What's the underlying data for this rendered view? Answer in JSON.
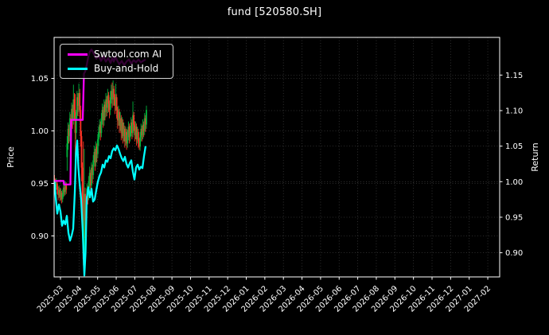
{
  "figure": {
    "title": "fund [520580.SH]",
    "background_color": "#000000",
    "text_color": "#ffffff"
  },
  "chart_data": {
    "type": "candlestick+line",
    "title": "fund [520580.SH]",
    "grid": true,
    "legend": {
      "position": "upper-left",
      "entries": [
        "Swtool.com AI",
        "Buy-and-Hold"
      ]
    },
    "x_axis": {
      "tick_labels": [
        "2025-03",
        "2025-04",
        "2025-05",
        "2025-06",
        "2025-07",
        "2025-08",
        "2025-09",
        "2025-10",
        "2025-11",
        "2025-12",
        "2026-01",
        "2026-02",
        "2026-03",
        "2026-04",
        "2026-05",
        "2026-06",
        "2026-07",
        "2026-08",
        "2026-09",
        "2026-10",
        "2026-11",
        "2026-12",
        "2027-01",
        "2027-02"
      ],
      "xlim_months": [
        -0.343,
        23.64
      ]
    },
    "left_axis": {
      "label": "Price",
      "ticks": [
        0.9,
        0.95,
        1.0,
        1.05
      ],
      "ylim": [
        0.861,
        1.089
      ]
    },
    "right_axis": {
      "label": "Return",
      "ticks": [
        0.9,
        0.95,
        1.0,
        1.05,
        1.1,
        1.15
      ],
      "ylim": [
        0.866,
        1.203
      ]
    },
    "candles": {
      "up_color": "#00b43c",
      "down_color": "#ff3326",
      "start_month": -0.321,
      "step_month": 0.0485,
      "ohlc": [
        [
          0.955,
          0.958,
          0.945,
          0.952
        ],
        [
          0.952,
          0.954,
          0.942,
          0.947
        ],
        [
          0.947,
          0.955,
          0.944,
          0.95
        ],
        [
          0.95,
          0.952,
          0.94,
          0.944
        ],
        [
          0.944,
          0.947,
          0.934,
          0.939
        ],
        [
          0.939,
          0.948,
          0.936,
          0.944
        ],
        [
          0.944,
          0.946,
          0.933,
          0.937
        ],
        [
          0.937,
          0.945,
          0.934,
          0.941
        ],
        [
          0.941,
          0.943,
          0.931,
          0.935
        ],
        [
          0.935,
          0.944,
          0.932,
          0.94
        ],
        [
          0.94,
          0.95,
          0.937,
          0.946
        ],
        [
          0.946,
          0.949,
          0.938,
          0.942
        ],
        [
          0.942,
          0.952,
          0.939,
          0.948
        ],
        [
          0.948,
          0.951,
          0.94,
          0.944
        ],
        [
          0.975,
          0.995,
          0.962,
          0.988
        ],
        [
          0.988,
          1.008,
          0.982,
          1.002
        ],
        [
          1.002,
          1.006,
          0.988,
          0.995
        ],
        [
          0.995,
          1.018,
          0.99,
          1.012
        ],
        [
          1.012,
          1.016,
          0.996,
          1.004
        ],
        [
          1.004,
          1.027,
          1.0,
          1.021
        ],
        [
          1.021,
          1.025,
          1.002,
          1.01
        ],
        [
          1.01,
          1.044,
          1.006,
          1.03
        ],
        [
          1.03,
          1.036,
          1.01,
          1.018
        ],
        [
          1.018,
          1.035,
          0.975,
          0.998
        ],
        [
          0.998,
          1.02,
          0.992,
          1.015
        ],
        [
          1.015,
          1.038,
          1.01,
          1.032
        ],
        [
          1.032,
          1.036,
          1.014,
          1.024
        ],
        [
          1.024,
          1.045,
          1.018,
          1.036
        ],
        [
          1.036,
          1.04,
          1.012,
          1.02
        ],
        [
          1.02,
          1.024,
          0.985,
          0.995
        ],
        [
          0.995,
          1.0,
          0.952,
          0.965
        ],
        [
          0.965,
          0.97,
          0.905,
          0.928
        ],
        [
          0.928,
          0.99,
          0.872,
          0.878
        ],
        [
          0.878,
          0.983,
          0.871,
          0.94
        ],
        [
          0.94,
          0.946,
          0.898,
          0.915
        ],
        [
          0.915,
          0.938,
          0.908,
          0.932
        ],
        [
          0.932,
          0.95,
          0.928,
          0.945
        ],
        [
          0.945,
          0.948,
          0.93,
          0.938
        ],
        [
          0.938,
          0.957,
          0.934,
          0.952
        ],
        [
          0.952,
          0.966,
          0.946,
          0.96
        ],
        [
          0.96,
          0.963,
          0.942,
          0.948
        ],
        [
          0.948,
          0.97,
          0.944,
          0.965
        ],
        [
          0.965,
          0.968,
          0.95,
          0.958
        ],
        [
          0.958,
          0.977,
          0.954,
          0.972
        ],
        [
          0.972,
          0.986,
          0.966,
          0.98
        ],
        [
          0.98,
          0.983,
          0.962,
          0.97
        ],
        [
          0.97,
          0.99,
          0.966,
          0.985
        ],
        [
          0.985,
          0.988,
          0.97,
          0.978
        ],
        [
          0.978,
          0.997,
          0.974,
          0.992
        ],
        [
          0.992,
          1.004,
          0.986,
          0.999
        ],
        [
          0.999,
          1.011,
          0.994,
          1.006
        ],
        [
          1.006,
          1.009,
          0.991,
          0.998
        ],
        [
          0.998,
          1.017,
          0.994,
          1.012
        ],
        [
          1.012,
          1.026,
          1.006,
          1.02
        ],
        [
          1.02,
          1.023,
          1.003,
          1.01
        ],
        [
          1.01,
          1.03,
          1.005,
          1.025
        ],
        [
          1.025,
          1.028,
          1.01,
          1.018
        ],
        [
          1.018,
          1.036,
          1.013,
          1.03
        ],
        [
          1.03,
          1.033,
          1.014,
          1.022
        ],
        [
          1.022,
          1.04,
          1.017,
          1.034
        ],
        [
          1.034,
          1.037,
          1.018,
          1.026
        ],
        [
          1.026,
          1.029,
          1.012,
          1.02
        ],
        [
          1.02,
          1.038,
          1.015,
          1.032
        ],
        [
          1.032,
          1.044,
          1.026,
          1.038
        ],
        [
          1.038,
          1.046,
          1.022,
          1.03
        ],
        [
          1.03,
          1.048,
          1.024,
          1.04
        ],
        [
          1.04,
          1.043,
          1.024,
          1.032
        ],
        [
          1.032,
          1.035,
          1.016,
          1.024
        ],
        [
          1.024,
          1.045,
          1.019,
          1.032
        ],
        [
          1.032,
          1.035,
          1.012,
          1.02
        ],
        [
          1.02,
          1.023,
          1.002,
          1.01
        ],
        [
          1.01,
          1.024,
          1.005,
          1.018
        ],
        [
          1.018,
          1.021,
          0.998,
          1.005
        ],
        [
          1.005,
          1.018,
          1.0,
          1.012
        ],
        [
          1.012,
          1.015,
          0.991,
          0.998
        ],
        [
          0.998,
          1.013,
          0.993,
          1.008
        ],
        [
          1.008,
          1.011,
          0.988,
          0.995
        ],
        [
          0.995,
          1.008,
          0.99,
          1.002
        ],
        [
          1.002,
          1.005,
          0.984,
          0.99
        ],
        [
          0.99,
          1.004,
          0.986,
          0.999
        ],
        [
          0.999,
          1.002,
          0.982,
          0.988
        ],
        [
          0.988,
          1.001,
          0.984,
          0.996
        ],
        [
          0.996,
          1.009,
          0.991,
          1.004
        ],
        [
          1.004,
          1.007,
          0.988,
          0.994
        ],
        [
          0.994,
          1.005,
          0.99,
          1.0
        ],
        [
          1.0,
          1.013,
          0.995,
          1.008
        ],
        [
          1.008,
          1.011,
          0.992,
          0.998
        ],
        [
          0.998,
          1.028,
          0.994,
          1.015
        ],
        [
          1.015,
          1.018,
          1.0,
          1.006
        ],
        [
          1.006,
          1.009,
          0.99,
          0.996
        ],
        [
          0.996,
          1.009,
          0.992,
          1.004
        ],
        [
          1.004,
          1.007,
          0.986,
          0.992
        ],
        [
          0.992,
          1.004,
          0.988,
          0.999
        ],
        [
          0.999,
          1.002,
          0.984,
          0.99
        ],
        [
          0.99,
          0.993,
          0.982,
          0.985
        ],
        [
          0.985,
          0.999,
          0.981,
          0.994
        ],
        [
          0.994,
          1.007,
          0.99,
          1.002
        ],
        [
          1.002,
          1.005,
          0.99,
          0.996
        ],
        [
          0.996,
          1.011,
          0.992,
          1.006
        ],
        [
          1.006,
          1.009,
          0.994,
          1.0
        ],
        [
          1.0,
          1.017,
          0.996,
          1.012
        ],
        [
          1.012,
          1.015,
          0.999,
          1.006
        ],
        [
          1.006,
          1.024,
          1.002,
          1.02
        ]
      ]
    },
    "series": [
      {
        "name": "Swtool.com AI",
        "color": "#ff00ff",
        "axis": "right",
        "points": [
          [
            -0.321,
            1.001
          ],
          [
            0.171,
            1.001
          ],
          [
            0.193,
            0.996
          ],
          [
            0.535,
            0.996
          ],
          [
            0.578,
            1.087
          ],
          [
            1.199,
            1.087
          ],
          [
            1.263,
            1.152
          ],
          [
            1.327,
            1.155
          ],
          [
            1.413,
            1.164
          ],
          [
            1.499,
            1.176
          ],
          [
            1.585,
            1.183
          ],
          [
            1.67,
            1.186
          ],
          [
            1.799,
            1.18
          ],
          [
            1.927,
            1.173
          ],
          [
            2.056,
            1.178
          ],
          [
            2.184,
            1.17
          ],
          [
            2.313,
            1.176
          ],
          [
            2.441,
            1.169
          ],
          [
            2.57,
            1.174
          ],
          [
            2.698,
            1.167
          ],
          [
            2.784,
            1.174
          ],
          [
            2.869,
            1.169
          ],
          [
            2.955,
            1.176
          ],
          [
            3.041,
            1.171
          ],
          [
            3.169,
            1.165
          ],
          [
            3.298,
            1.17
          ],
          [
            3.426,
            1.164
          ],
          [
            3.555,
            1.169
          ],
          [
            3.683,
            1.172
          ],
          [
            3.812,
            1.166
          ],
          [
            3.94,
            1.171
          ],
          [
            4.069,
            1.168
          ],
          [
            4.197,
            1.172
          ],
          [
            4.326,
            1.168
          ],
          [
            4.454,
            1.17
          ],
          [
            4.583,
            1.172
          ]
        ]
      },
      {
        "name": "Buy-and-Hold",
        "color": "#00ffff",
        "axis": "right",
        "points": [
          [
            -0.321,
            1.0
          ],
          [
            -0.257,
            0.978
          ],
          [
            -0.171,
            0.955
          ],
          [
            -0.086,
            0.968
          ],
          [
            0.0,
            0.958
          ],
          [
            0.086,
            0.938
          ],
          [
            0.171,
            0.945
          ],
          [
            0.257,
            0.94
          ],
          [
            0.343,
            0.952
          ],
          [
            0.428,
            0.928
          ],
          [
            0.514,
            0.917
          ],
          [
            0.6,
            0.924
          ],
          [
            0.685,
            0.934
          ],
          [
            0.771,
            0.985
          ],
          [
            0.835,
            1.04
          ],
          [
            0.899,
            1.058
          ],
          [
            0.963,
            1.02
          ],
          [
            1.028,
            0.998
          ],
          [
            1.113,
            0.975
          ],
          [
            1.199,
            0.93
          ],
          [
            1.285,
            0.868
          ],
          [
            1.349,
            0.9
          ],
          [
            1.413,
            0.976
          ],
          [
            1.499,
            0.992
          ],
          [
            1.585,
            0.978
          ],
          [
            1.67,
            0.99
          ],
          [
            1.756,
            0.972
          ],
          [
            1.841,
            0.975
          ],
          [
            1.927,
            0.988
          ],
          [
            2.013,
            1.0
          ],
          [
            2.098,
            1.008
          ],
          [
            2.184,
            1.013
          ],
          [
            2.27,
            1.024
          ],
          [
            2.355,
            1.02
          ],
          [
            2.441,
            1.03
          ],
          [
            2.527,
            1.028
          ],
          [
            2.612,
            1.036
          ],
          [
            2.698,
            1.033
          ],
          [
            2.784,
            1.043
          ],
          [
            2.869,
            1.047
          ],
          [
            2.955,
            1.044
          ],
          [
            3.041,
            1.051
          ],
          [
            3.126,
            1.046
          ],
          [
            3.212,
            1.039
          ],
          [
            3.298,
            1.033
          ],
          [
            3.383,
            1.029
          ],
          [
            3.469,
            1.035
          ],
          [
            3.555,
            1.025
          ],
          [
            3.64,
            1.02
          ],
          [
            3.726,
            1.026
          ],
          [
            3.812,
            1.03
          ],
          [
            3.897,
            1.014
          ],
          [
            3.983,
            1.003
          ],
          [
            4.069,
            1.02
          ],
          [
            4.154,
            1.024
          ],
          [
            4.24,
            1.017
          ],
          [
            4.326,
            1.021
          ],
          [
            4.411,
            1.019
          ],
          [
            4.497,
            1.036
          ],
          [
            4.583,
            1.05
          ]
        ]
      }
    ]
  }
}
